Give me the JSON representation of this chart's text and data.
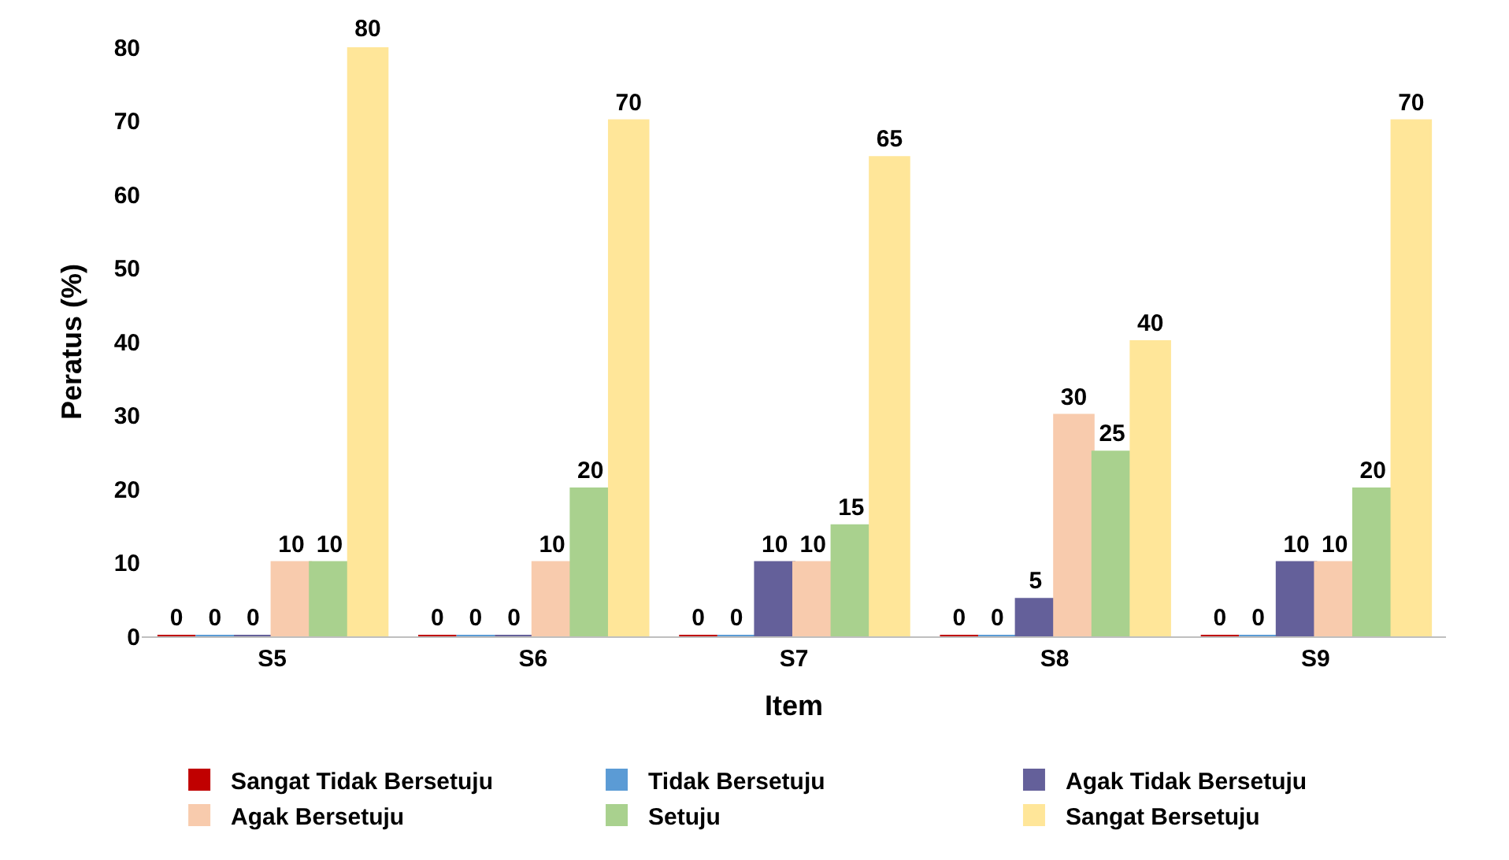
{
  "chart_data": {
    "type": "bar",
    "xlabel": "Item",
    "ylabel": "Peratus (%)",
    "categories": [
      "S5",
      "S6",
      "S7",
      "S8",
      "S9"
    ],
    "series": [
      {
        "name": "Sangat Tidak Bersetuju",
        "color": "#c00000",
        "values": [
          0,
          0,
          0,
          0,
          0
        ]
      },
      {
        "name": "Tidak Bersetuju",
        "color": "#5b9bd5",
        "values": [
          0,
          0,
          0,
          0,
          0
        ]
      },
      {
        "name": "Agak Tidak Bersetuju",
        "color": "#64609a",
        "values": [
          0,
          0,
          10,
          5,
          10
        ]
      },
      {
        "name": "Agak Bersetuju",
        "color": "#f8cbad",
        "values": [
          10,
          10,
          10,
          30,
          10
        ]
      },
      {
        "name": "Setuju",
        "color": "#a9d18e",
        "values": [
          10,
          20,
          15,
          25,
          20
        ]
      },
      {
        "name": "Sangat Bersetuju",
        "color": "#ffe699",
        "values": [
          80,
          70,
          65,
          40,
          70
        ]
      }
    ],
    "ylim": [
      0,
      80
    ],
    "yticks": [
      0,
      10,
      20,
      30,
      40,
      50,
      60,
      70,
      80
    ],
    "data_labels": true,
    "legend": "bottom"
  }
}
